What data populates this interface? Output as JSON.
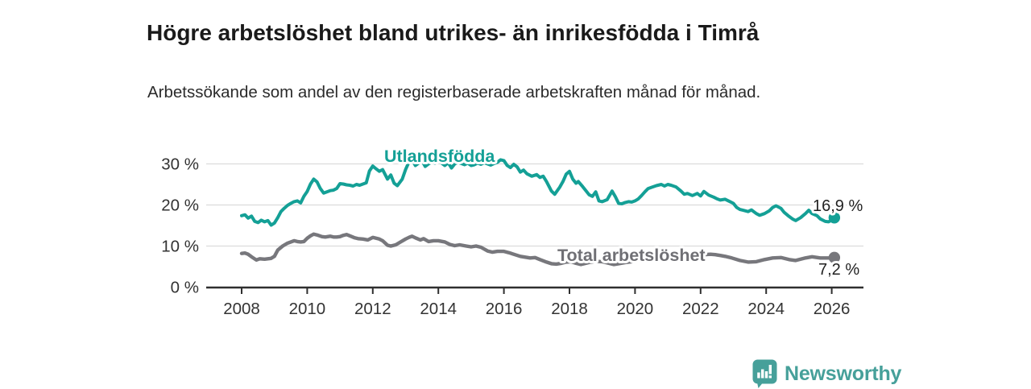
{
  "header": {
    "title": "Högre arbetslöshet bland utrikes- än inrikesfödda i Timrå",
    "subtitle": "Arbetssökande som andel av den registerbaserade arbetskraften månad för månad."
  },
  "footer": {
    "brand": "Newsworthy",
    "brand_color": "#46a09a",
    "logo_icon": "newsworthy-speech-bubble-bar-chart-icon"
  },
  "colors": {
    "series_foreign": "#14a096",
    "series_total": "#77777c",
    "series_total_label": "#6f6f74",
    "grid": "#dcdcdc",
    "axis": "#2f2f2f",
    "tick_text": "#333333",
    "end_label_text": "#222222"
  },
  "chart_data": {
    "type": "line",
    "title": "Högre arbetslöshet bland utrikes- än inrikesfödda i Timrå",
    "subtitle": "Arbetssökande som andel av den registerbaserade arbetskraften månad för månad.",
    "grid": true,
    "legend_position": "inline-labels",
    "x_axis": {
      "range": [
        2007.4,
        2026.9
      ],
      "ticks": [
        2008,
        2010,
        2012,
        2014,
        2016,
        2018,
        2020,
        2022,
        2024,
        2026
      ],
      "tick_labels": [
        "2008",
        "2010",
        "2012",
        "2014",
        "2016",
        "2018",
        "2020",
        "2022",
        "2024",
        "2026"
      ]
    },
    "y_axis": {
      "range": [
        0,
        33
      ],
      "ticks": [
        0,
        10,
        20,
        30
      ],
      "tick_labels": [
        "0 %",
        "10 %",
        "20 %",
        "30 %"
      ]
    },
    "series": [
      {
        "name": "Utlandsfödda",
        "color": "#14a096",
        "end_label": "16,9 %",
        "end_value": 16.9,
        "points": [
          [
            2008.0,
            17.4
          ],
          [
            2008.1,
            17.6
          ],
          [
            2008.2,
            16.8
          ],
          [
            2008.3,
            17.3
          ],
          [
            2008.4,
            16.0
          ],
          [
            2008.5,
            15.7
          ],
          [
            2008.6,
            16.3
          ],
          [
            2008.7,
            15.9
          ],
          [
            2008.8,
            16.2
          ],
          [
            2008.9,
            15.1
          ],
          [
            2009.0,
            15.6
          ],
          [
            2009.1,
            16.9
          ],
          [
            2009.2,
            18.4
          ],
          [
            2009.3,
            19.2
          ],
          [
            2009.4,
            19.9
          ],
          [
            2009.5,
            20.4
          ],
          [
            2009.6,
            20.8
          ],
          [
            2009.7,
            21.0
          ],
          [
            2009.8,
            20.5
          ],
          [
            2009.9,
            22.1
          ],
          [
            2010.0,
            23.3
          ],
          [
            2010.1,
            25.1
          ],
          [
            2010.2,
            26.3
          ],
          [
            2010.3,
            25.6
          ],
          [
            2010.4,
            24.0
          ],
          [
            2010.5,
            22.9
          ],
          [
            2010.6,
            23.2
          ],
          [
            2010.7,
            23.5
          ],
          [
            2010.8,
            23.6
          ],
          [
            2010.9,
            24.0
          ],
          [
            2011.0,
            25.2
          ],
          [
            2011.1,
            25.1
          ],
          [
            2011.2,
            24.9
          ],
          [
            2011.3,
            24.8
          ],
          [
            2011.4,
            24.6
          ],
          [
            2011.5,
            25.0
          ],
          [
            2011.6,
            24.8
          ],
          [
            2011.7,
            25.1
          ],
          [
            2011.8,
            25.4
          ],
          [
            2011.9,
            28.3
          ],
          [
            2012.0,
            29.5
          ],
          [
            2012.1,
            28.8
          ],
          [
            2012.2,
            28.2
          ],
          [
            2012.3,
            28.6
          ],
          [
            2012.45,
            26.3
          ],
          [
            2012.55,
            27.3
          ],
          [
            2012.65,
            25.3
          ],
          [
            2012.75,
            24.7
          ],
          [
            2012.9,
            26.3
          ],
          [
            2013.0,
            28.6
          ],
          [
            2013.1,
            30.4
          ],
          [
            2013.2,
            31.0
          ],
          [
            2013.3,
            29.6
          ],
          [
            2013.4,
            30.2
          ],
          [
            2013.5,
            30.8
          ],
          [
            2013.6,
            29.4
          ],
          [
            2013.7,
            30.0
          ],
          [
            2013.8,
            30.5
          ],
          [
            2013.9,
            30.2
          ],
          [
            2014.0,
            30.6
          ],
          [
            2014.1,
            30.2
          ],
          [
            2014.2,
            29.6
          ],
          [
            2014.3,
            30.3
          ],
          [
            2014.4,
            29.0
          ],
          [
            2014.5,
            30.0
          ],
          [
            2014.6,
            30.4
          ],
          [
            2014.7,
            30.1
          ],
          [
            2014.8,
            29.8
          ],
          [
            2014.9,
            30.2
          ],
          [
            2015.0,
            29.6
          ],
          [
            2015.1,
            29.8
          ],
          [
            2015.2,
            30.2
          ],
          [
            2015.3,
            29.9
          ],
          [
            2015.4,
            30.3
          ],
          [
            2015.5,
            30.0
          ],
          [
            2015.6,
            29.7
          ],
          [
            2015.7,
            30.1
          ],
          [
            2015.8,
            30.4
          ],
          [
            2015.9,
            31.0
          ],
          [
            2016.0,
            30.8
          ],
          [
            2016.1,
            29.6
          ],
          [
            2016.2,
            29.1
          ],
          [
            2016.3,
            29.9
          ],
          [
            2016.4,
            29.3
          ],
          [
            2016.5,
            28.0
          ],
          [
            2016.6,
            28.5
          ],
          [
            2016.7,
            27.6
          ],
          [
            2016.85,
            27.0
          ],
          [
            2017.0,
            27.4
          ],
          [
            2017.1,
            26.7
          ],
          [
            2017.2,
            27.0
          ],
          [
            2017.3,
            25.7
          ],
          [
            2017.45,
            23.4
          ],
          [
            2017.55,
            22.6
          ],
          [
            2017.7,
            24.3
          ],
          [
            2017.8,
            25.7
          ],
          [
            2017.9,
            27.5
          ],
          [
            2018.0,
            28.2
          ],
          [
            2018.1,
            26.3
          ],
          [
            2018.2,
            25.3
          ],
          [
            2018.27,
            25.7
          ],
          [
            2018.4,
            24.5
          ],
          [
            2018.5,
            23.5
          ],
          [
            2018.6,
            22.5
          ],
          [
            2018.7,
            22.1
          ],
          [
            2018.8,
            23.2
          ],
          [
            2018.9,
            21.0
          ],
          [
            2019.0,
            20.8
          ],
          [
            2019.15,
            21.3
          ],
          [
            2019.3,
            23.4
          ],
          [
            2019.4,
            22.0
          ],
          [
            2019.5,
            20.4
          ],
          [
            2019.6,
            20.3
          ],
          [
            2019.7,
            20.6
          ],
          [
            2019.8,
            20.8
          ],
          [
            2019.9,
            20.7
          ],
          [
            2020.0,
            21.0
          ],
          [
            2020.1,
            21.5
          ],
          [
            2020.2,
            22.3
          ],
          [
            2020.3,
            23.2
          ],
          [
            2020.4,
            24.0
          ],
          [
            2020.5,
            24.3
          ],
          [
            2020.65,
            24.7
          ],
          [
            2020.8,
            25.0
          ],
          [
            2020.9,
            24.6
          ],
          [
            2021.0,
            25.0
          ],
          [
            2021.1,
            24.8
          ],
          [
            2021.25,
            24.4
          ],
          [
            2021.4,
            23.4
          ],
          [
            2021.5,
            22.6
          ],
          [
            2021.6,
            22.8
          ],
          [
            2021.75,
            22.3
          ],
          [
            2021.9,
            22.8
          ],
          [
            2022.0,
            22.2
          ],
          [
            2022.1,
            23.3
          ],
          [
            2022.25,
            22.4
          ],
          [
            2022.4,
            21.9
          ],
          [
            2022.5,
            21.5
          ],
          [
            2022.6,
            21.2
          ],
          [
            2022.75,
            21.4
          ],
          [
            2022.9,
            20.8
          ],
          [
            2023.0,
            20.4
          ],
          [
            2023.1,
            19.4
          ],
          [
            2023.2,
            18.9
          ],
          [
            2023.3,
            18.7
          ],
          [
            2023.45,
            18.4
          ],
          [
            2023.55,
            18.8
          ],
          [
            2023.7,
            17.9
          ],
          [
            2023.8,
            17.5
          ],
          [
            2023.95,
            17.9
          ],
          [
            2024.1,
            18.6
          ],
          [
            2024.2,
            19.4
          ],
          [
            2024.3,
            19.8
          ],
          [
            2024.45,
            19.2
          ],
          [
            2024.55,
            18.2
          ],
          [
            2024.7,
            17.2
          ],
          [
            2024.8,
            16.6
          ],
          [
            2024.9,
            16.2
          ],
          [
            2025.05,
            16.9
          ],
          [
            2025.2,
            17.9
          ],
          [
            2025.3,
            18.7
          ],
          [
            2025.4,
            17.9
          ],
          [
            2025.55,
            17.4
          ],
          [
            2025.65,
            16.6
          ],
          [
            2025.8,
            16.0
          ],
          [
            2025.9,
            15.9
          ],
          [
            2026.0,
            16.3
          ],
          [
            2026.08,
            16.9
          ]
        ]
      },
      {
        "name": "Total arbetslöshet",
        "color": "#77777c",
        "end_label": "7,2 %",
        "end_value": 7.2,
        "points": [
          [
            2008.0,
            8.2
          ],
          [
            2008.1,
            8.3
          ],
          [
            2008.2,
            8.0
          ],
          [
            2008.3,
            7.4
          ],
          [
            2008.45,
            6.6
          ],
          [
            2008.55,
            6.9
          ],
          [
            2008.7,
            6.8
          ],
          [
            2008.8,
            6.9
          ],
          [
            2008.9,
            7.0
          ],
          [
            2009.0,
            7.5
          ],
          [
            2009.1,
            9.0
          ],
          [
            2009.25,
            10.0
          ],
          [
            2009.4,
            10.7
          ],
          [
            2009.5,
            11.0
          ],
          [
            2009.6,
            11.3
          ],
          [
            2009.7,
            11.1
          ],
          [
            2009.8,
            11.0
          ],
          [
            2009.9,
            11.1
          ],
          [
            2010.0,
            11.9
          ],
          [
            2010.1,
            12.5
          ],
          [
            2010.2,
            12.9
          ],
          [
            2010.3,
            12.7
          ],
          [
            2010.45,
            12.3
          ],
          [
            2010.55,
            12.2
          ],
          [
            2010.7,
            12.4
          ],
          [
            2010.8,
            12.2
          ],
          [
            2010.9,
            12.2
          ],
          [
            2011.0,
            12.3
          ],
          [
            2011.1,
            12.6
          ],
          [
            2011.2,
            12.8
          ],
          [
            2011.3,
            12.5
          ],
          [
            2011.45,
            12.0
          ],
          [
            2011.55,
            11.8
          ],
          [
            2011.7,
            11.7
          ],
          [
            2011.85,
            11.5
          ],
          [
            2012.0,
            12.1
          ],
          [
            2012.1,
            11.9
          ],
          [
            2012.2,
            11.7
          ],
          [
            2012.3,
            11.3
          ],
          [
            2012.45,
            10.2
          ],
          [
            2012.55,
            10.0
          ],
          [
            2012.7,
            10.3
          ],
          [
            2012.85,
            11.0
          ],
          [
            2013.0,
            11.7
          ],
          [
            2013.1,
            12.1
          ],
          [
            2013.2,
            12.4
          ],
          [
            2013.3,
            12.0
          ],
          [
            2013.45,
            11.5
          ],
          [
            2013.55,
            11.8
          ],
          [
            2013.7,
            11.1
          ],
          [
            2013.85,
            11.3
          ],
          [
            2014.0,
            11.3
          ],
          [
            2014.2,
            11.0
          ],
          [
            2014.35,
            10.4
          ],
          [
            2014.5,
            10.1
          ],
          [
            2014.65,
            10.3
          ],
          [
            2014.85,
            10.0
          ],
          [
            2015.0,
            9.8
          ],
          [
            2015.15,
            10.0
          ],
          [
            2015.3,
            9.7
          ],
          [
            2015.5,
            8.8
          ],
          [
            2015.65,
            8.5
          ],
          [
            2015.8,
            8.7
          ],
          [
            2016.0,
            8.7
          ],
          [
            2016.15,
            8.4
          ],
          [
            2016.3,
            8.0
          ],
          [
            2016.5,
            7.5
          ],
          [
            2016.65,
            7.3
          ],
          [
            2016.8,
            7.1
          ],
          [
            2016.95,
            7.2
          ],
          [
            2017.1,
            6.7
          ],
          [
            2017.3,
            6.1
          ],
          [
            2017.45,
            5.7
          ],
          [
            2017.6,
            5.6
          ],
          [
            2017.75,
            5.8
          ],
          [
            2017.9,
            6.1
          ],
          [
            2018.05,
            6.2
          ],
          [
            2018.2,
            5.8
          ],
          [
            2018.35,
            5.5
          ],
          [
            2018.5,
            5.8
          ],
          [
            2018.65,
            6.1
          ],
          [
            2018.8,
            6.3
          ],
          [
            2019.0,
            6.2
          ],
          [
            2019.2,
            5.8
          ],
          [
            2019.35,
            5.5
          ],
          [
            2019.5,
            5.7
          ],
          [
            2019.7,
            6.0
          ],
          [
            2019.9,
            6.2
          ],
          [
            2020.1,
            6.6
          ],
          [
            2020.3,
            7.2
          ],
          [
            2020.5,
            7.5
          ],
          [
            2020.7,
            7.6
          ],
          [
            2020.9,
            7.4
          ],
          [
            2021.1,
            7.5
          ],
          [
            2021.3,
            7.7
          ],
          [
            2021.5,
            7.6
          ],
          [
            2021.7,
            7.7
          ],
          [
            2021.9,
            7.8
          ],
          [
            2022.1,
            7.9
          ],
          [
            2022.3,
            8.0
          ],
          [
            2022.45,
            7.9
          ],
          [
            2022.6,
            7.7
          ],
          [
            2022.75,
            7.5
          ],
          [
            2022.95,
            7.1
          ],
          [
            2023.2,
            6.5
          ],
          [
            2023.45,
            6.1
          ],
          [
            2023.7,
            6.2
          ],
          [
            2023.95,
            6.7
          ],
          [
            2024.2,
            7.1
          ],
          [
            2024.45,
            7.2
          ],
          [
            2024.7,
            6.7
          ],
          [
            2024.9,
            6.5
          ],
          [
            2025.2,
            7.1
          ],
          [
            2025.4,
            7.4
          ],
          [
            2025.65,
            7.1
          ],
          [
            2025.9,
            7.1
          ],
          [
            2026.08,
            7.2
          ]
        ]
      }
    ]
  }
}
